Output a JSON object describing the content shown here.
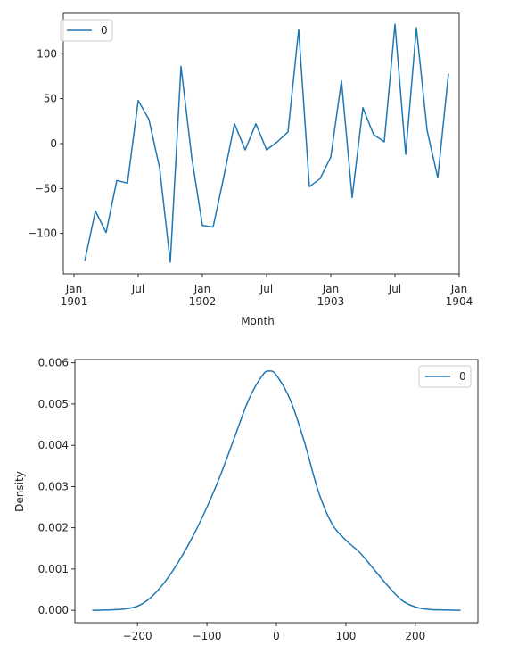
{
  "colors": {
    "line": "#1f77b4",
    "axis": "#000000",
    "legend_border": "#cccccc"
  },
  "chart_data": [
    {
      "type": "line",
      "xlabel": "Month",
      "ylabel": "",
      "ylim": [
        -145,
        145
      ],
      "x_range": [
        "1900-12",
        "1904-01"
      ],
      "legend": {
        "position": "upper-left",
        "entries": [
          "0"
        ]
      },
      "grid": false,
      "y_ticks": [
        {
          "value": -100,
          "label": "−100"
        },
        {
          "value": -50,
          "label": "−50"
        },
        {
          "value": 0,
          "label": "0"
        },
        {
          "value": 50,
          "label": "50"
        },
        {
          "value": 100,
          "label": "100"
        }
      ],
      "x_ticks": [
        {
          "value": "1901-01",
          "label": "Jan",
          "sublabel": "1901"
        },
        {
          "value": "1901-07",
          "label": "Jul",
          "sublabel": ""
        },
        {
          "value": "1902-01",
          "label": "Jan",
          "sublabel": "1902"
        },
        {
          "value": "1902-07",
          "label": "Jul",
          "sublabel": ""
        },
        {
          "value": "1903-01",
          "label": "Jan",
          "sublabel": "1903"
        },
        {
          "value": "1903-07",
          "label": "Jul",
          "sublabel": ""
        },
        {
          "value": "1904-01",
          "label": "Jan",
          "sublabel": "1904"
        }
      ],
      "series": [
        {
          "name": "0",
          "x": [
            "1901-02",
            "1901-03",
            "1901-04",
            "1901-05",
            "1901-06",
            "1901-07",
            "1901-08",
            "1901-09",
            "1901-10",
            "1901-11",
            "1901-12",
            "1902-01",
            "1902-02",
            "1902-03",
            "1902-04",
            "1902-05",
            "1902-06",
            "1902-07",
            "1902-08",
            "1902-09",
            "1902-10",
            "1902-11",
            "1902-12",
            "1903-01",
            "1903-02",
            "1903-03",
            "1903-04",
            "1903-05",
            "1903-06",
            "1903-07",
            "1903-08",
            "1903-09",
            "1903-10",
            "1903-11",
            "1903-12"
          ],
          "values": [
            -131,
            -75,
            -99,
            -41,
            -44,
            48,
            27,
            -27,
            -132,
            86,
            -15,
            -91,
            -93,
            -37,
            22,
            -7,
            22,
            -7,
            2,
            13,
            127,
            -48,
            -39,
            -15,
            70,
            -60,
            40,
            10,
            2,
            133,
            -12,
            129,
            15,
            -38,
            78
          ]
        }
      ]
    },
    {
      "type": "line",
      "xlabel": "",
      "ylabel": "Density",
      "xlim": [
        -290,
        290
      ],
      "ylim": [
        -0.0003,
        0.00608
      ],
      "legend": {
        "position": "upper-right",
        "entries": [
          "0"
        ]
      },
      "grid": false,
      "x_ticks": [
        {
          "value": -200,
          "label": "−200"
        },
        {
          "value": -100,
          "label": "−100"
        },
        {
          "value": 0,
          "label": "0"
        },
        {
          "value": 100,
          "label": "100"
        },
        {
          "value": 200,
          "label": "200"
        }
      ],
      "y_ticks": [
        {
          "value": 0,
          "label": "0.000"
        },
        {
          "value": 0.001,
          "label": "0.001"
        },
        {
          "value": 0.002,
          "label": "0.002"
        },
        {
          "value": 0.003,
          "label": "0.003"
        },
        {
          "value": 0.004,
          "label": "0.004"
        },
        {
          "value": 0.005,
          "label": "0.005"
        },
        {
          "value": 0.006,
          "label": "0.006"
        }
      ],
      "series": [
        {
          "name": "0",
          "x": [
            -265,
            -240,
            -220,
            -200,
            -180,
            -160,
            -140,
            -120,
            -100,
            -80,
            -60,
            -40,
            -20,
            -10,
            0,
            20,
            40,
            60,
            80,
            100,
            120,
            140,
            160,
            180,
            200,
            220,
            240,
            265
          ],
          "values": [
            0.0,
            1e-05,
            3e-05,
            0.0001,
            0.00032,
            0.0007,
            0.0012,
            0.0018,
            0.0025,
            0.0033,
            0.0042,
            0.0051,
            0.0057,
            0.0058,
            0.0057,
            0.0051,
            0.0041,
            0.0029,
            0.0021,
            0.0017,
            0.0014,
            0.001,
            0.0006,
            0.00025,
            8e-05,
            2e-05,
            1e-05,
            0.0
          ]
        }
      ]
    }
  ]
}
